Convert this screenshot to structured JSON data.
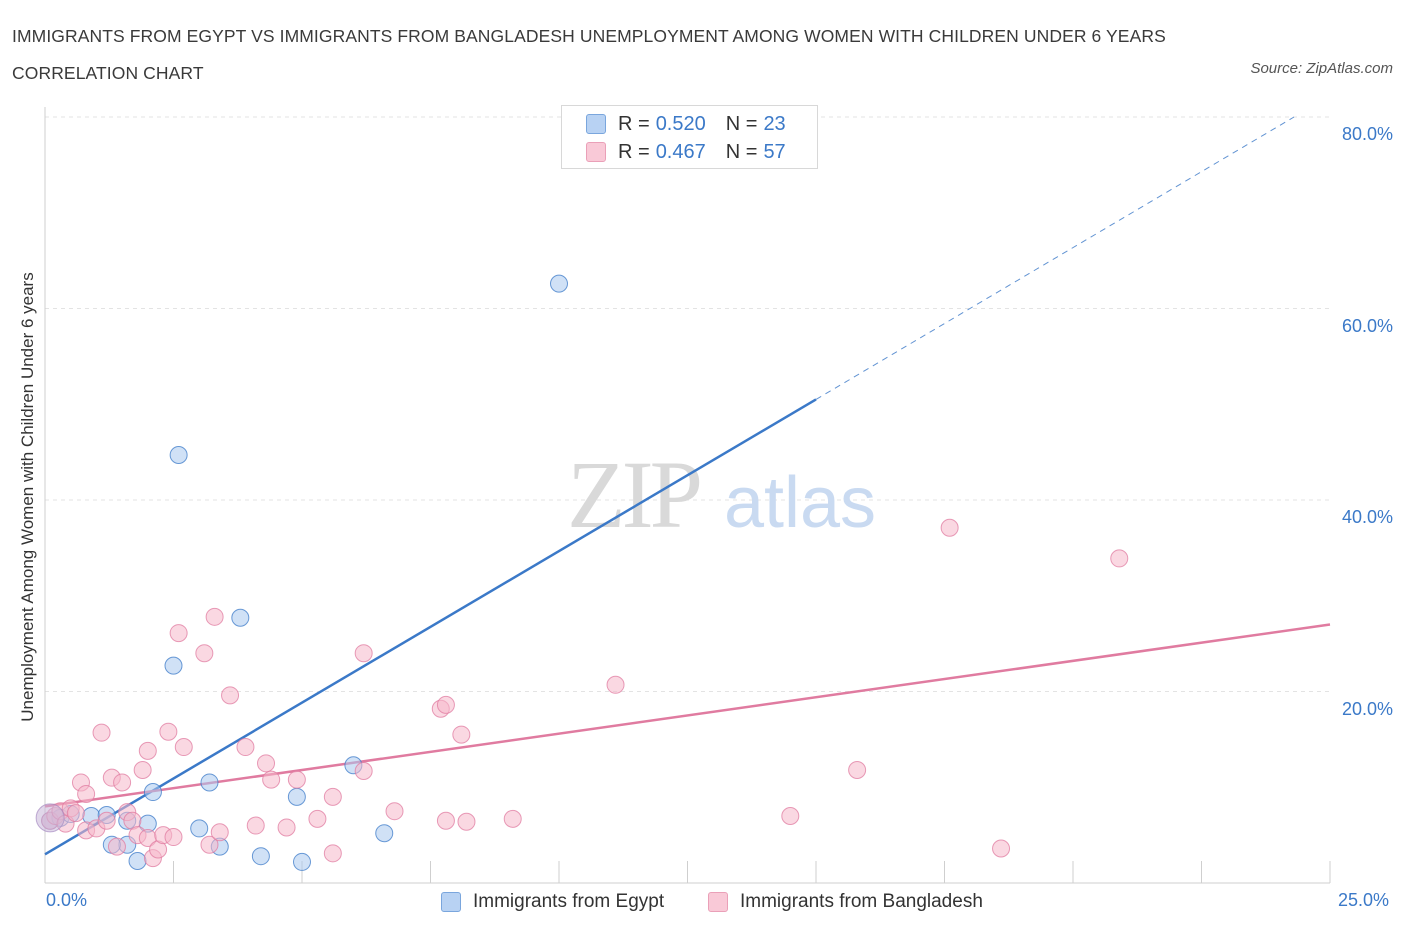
{
  "chart_data": {
    "type": "scatter",
    "title": "IMMIGRANTS FROM EGYPT VS IMMIGRANTS FROM BANGLADESH UNEMPLOYMENT AMONG WOMEN WITH CHILDREN UNDER 6 YEARS CORRELATION CHART",
    "source": "Source: ZipAtlas.com",
    "xlabel": "",
    "ylabel": "Unemployment Among Women with Children Under 6 years",
    "xlim": [
      0,
      25
    ],
    "ylim": [
      0,
      80
    ],
    "x_tick_labels": {
      "min": "0.0%",
      "max": "25.0%"
    },
    "y_ticks": [
      20,
      40,
      60,
      80
    ],
    "y_tick_labels": [
      "20.0%",
      "40.0%",
      "60.0%",
      "80.0%"
    ],
    "watermark": "ZIPatlas",
    "legend": {
      "r_label": "R =",
      "n_label": "N =",
      "entries": [
        {
          "name": "Immigrants from Egypt",
          "r": "0.520",
          "n": "23"
        },
        {
          "name": "Immigrants from Bangladesh",
          "r": "0.467",
          "n": "57"
        }
      ]
    },
    "series": [
      {
        "name": "Immigrants from Egypt",
        "color": "#3b79c8",
        "fill": "#a9c8ef",
        "trend": {
          "x0": 0,
          "y0": 3.0,
          "x1": 15,
          "y1": 50.5,
          "dashed_to_x": 24.3,
          "dashed_to_y": 80.0
        },
        "points": [
          [
            0.1,
            6.5
          ],
          [
            0.3,
            6.8
          ],
          [
            0.5,
            7.2
          ],
          [
            0.9,
            7.0
          ],
          [
            1.2,
            7.1
          ],
          [
            1.6,
            6.5
          ],
          [
            1.8,
            2.3
          ],
          [
            1.6,
            4.0
          ],
          [
            2.0,
            6.2
          ],
          [
            2.1,
            9.5
          ],
          [
            2.5,
            22.7
          ],
          [
            2.6,
            44.7
          ],
          [
            3.0,
            5.7
          ],
          [
            3.2,
            10.5
          ],
          [
            3.4,
            3.8
          ],
          [
            3.8,
            27.7
          ],
          [
            4.2,
            2.8
          ],
          [
            4.9,
            9.0
          ],
          [
            5.0,
            2.2
          ],
          [
            6.0,
            12.3
          ],
          [
            6.6,
            5.2
          ],
          [
            10.0,
            62.6
          ],
          [
            1.3,
            4.0
          ]
        ]
      },
      {
        "name": "Immigrants from Bangladesh",
        "color": "#e07ba0",
        "fill": "#f5b8cb",
        "trend": {
          "x0": 0,
          "y0": 8.0,
          "x1": 25,
          "y1": 27.0
        },
        "points": [
          [
            0.1,
            6.5
          ],
          [
            0.2,
            7.0
          ],
          [
            0.3,
            7.5
          ],
          [
            0.4,
            6.2
          ],
          [
            0.5,
            7.8
          ],
          [
            0.7,
            10.5
          ],
          [
            0.8,
            9.3
          ],
          [
            0.8,
            5.5
          ],
          [
            1.0,
            5.7
          ],
          [
            1.1,
            15.7
          ],
          [
            1.2,
            6.5
          ],
          [
            1.3,
            11.0
          ],
          [
            1.4,
            3.8
          ],
          [
            1.5,
            10.5
          ],
          [
            1.6,
            7.4
          ],
          [
            1.7,
            6.5
          ],
          [
            1.8,
            5.0
          ],
          [
            1.9,
            11.8
          ],
          [
            2.0,
            4.7
          ],
          [
            2.0,
            13.8
          ],
          [
            2.1,
            2.6
          ],
          [
            2.2,
            3.5
          ],
          [
            2.3,
            5.0
          ],
          [
            2.4,
            15.8
          ],
          [
            2.5,
            4.8
          ],
          [
            2.6,
            26.1
          ],
          [
            2.7,
            14.2
          ],
          [
            3.1,
            24.0
          ],
          [
            3.2,
            4.0
          ],
          [
            3.3,
            27.8
          ],
          [
            3.4,
            5.3
          ],
          [
            3.6,
            19.6
          ],
          [
            3.9,
            14.2
          ],
          [
            4.1,
            6.0
          ],
          [
            4.3,
            12.5
          ],
          [
            4.4,
            10.8
          ],
          [
            4.7,
            5.8
          ],
          [
            4.9,
            10.8
          ],
          [
            5.3,
            6.7
          ],
          [
            5.6,
            9.0
          ],
          [
            5.6,
            3.1
          ],
          [
            6.2,
            11.7
          ],
          [
            6.2,
            24.0
          ],
          [
            6.8,
            7.5
          ],
          [
            7.7,
            18.2
          ],
          [
            7.8,
            6.5
          ],
          [
            7.8,
            18.6
          ],
          [
            8.1,
            15.5
          ],
          [
            8.2,
            6.4
          ],
          [
            9.1,
            6.7
          ],
          [
            11.1,
            20.7
          ],
          [
            14.5,
            7.0
          ],
          [
            15.8,
            11.8
          ],
          [
            17.6,
            37.1
          ],
          [
            18.6,
            3.6
          ],
          [
            20.9,
            33.9
          ],
          [
            0.6,
            7.3
          ]
        ]
      }
    ]
  }
}
